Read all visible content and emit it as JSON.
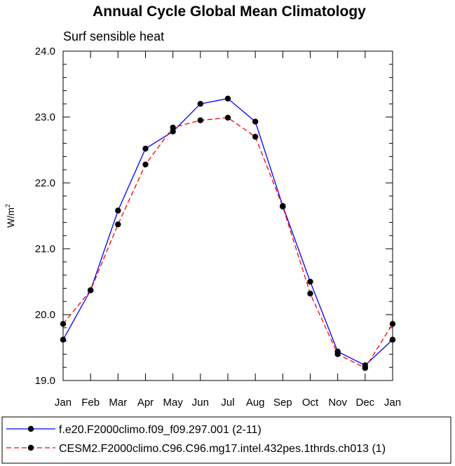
{
  "chart_data": {
    "type": "line",
    "title": "Annual Cycle Global Mean Climatology",
    "subtitle": "Surf sensible heat",
    "ylabel": "W/m",
    "ylabel_superscript": "2",
    "xlabel": "",
    "categories": [
      "Jan",
      "Feb",
      "Mar",
      "Apr",
      "May",
      "Jun",
      "Jul",
      "Aug",
      "Sep",
      "Oct",
      "Nov",
      "Dec",
      "Jan"
    ],
    "y_tick_labels": [
      "19.0",
      "20.0",
      "21.0",
      "22.0",
      "23.0",
      "24.0"
    ],
    "ylim": [
      19.0,
      24.0
    ],
    "legend_position": "bottom",
    "series": [
      {
        "name": "f.e20.F2000climo.f09_f09.297.001 (2-11)",
        "color": "#0000ff",
        "dash": "solid",
        "marker": "circle",
        "values": [
          19.62,
          20.37,
          21.58,
          22.52,
          22.78,
          23.2,
          23.28,
          22.93,
          21.65,
          20.5,
          19.44,
          19.23,
          19.62
        ]
      },
      {
        "name": "CESM2.F2000climo.C96.C96.mg17.intel.432pes.1thrds.ch013 (1)",
        "color": "#ff0000",
        "dash": "dashed",
        "marker": "circle",
        "values": [
          19.86,
          20.37,
          21.37,
          22.28,
          22.84,
          22.95,
          22.99,
          22.7,
          21.64,
          20.32,
          19.4,
          19.19,
          19.86
        ]
      }
    ]
  }
}
